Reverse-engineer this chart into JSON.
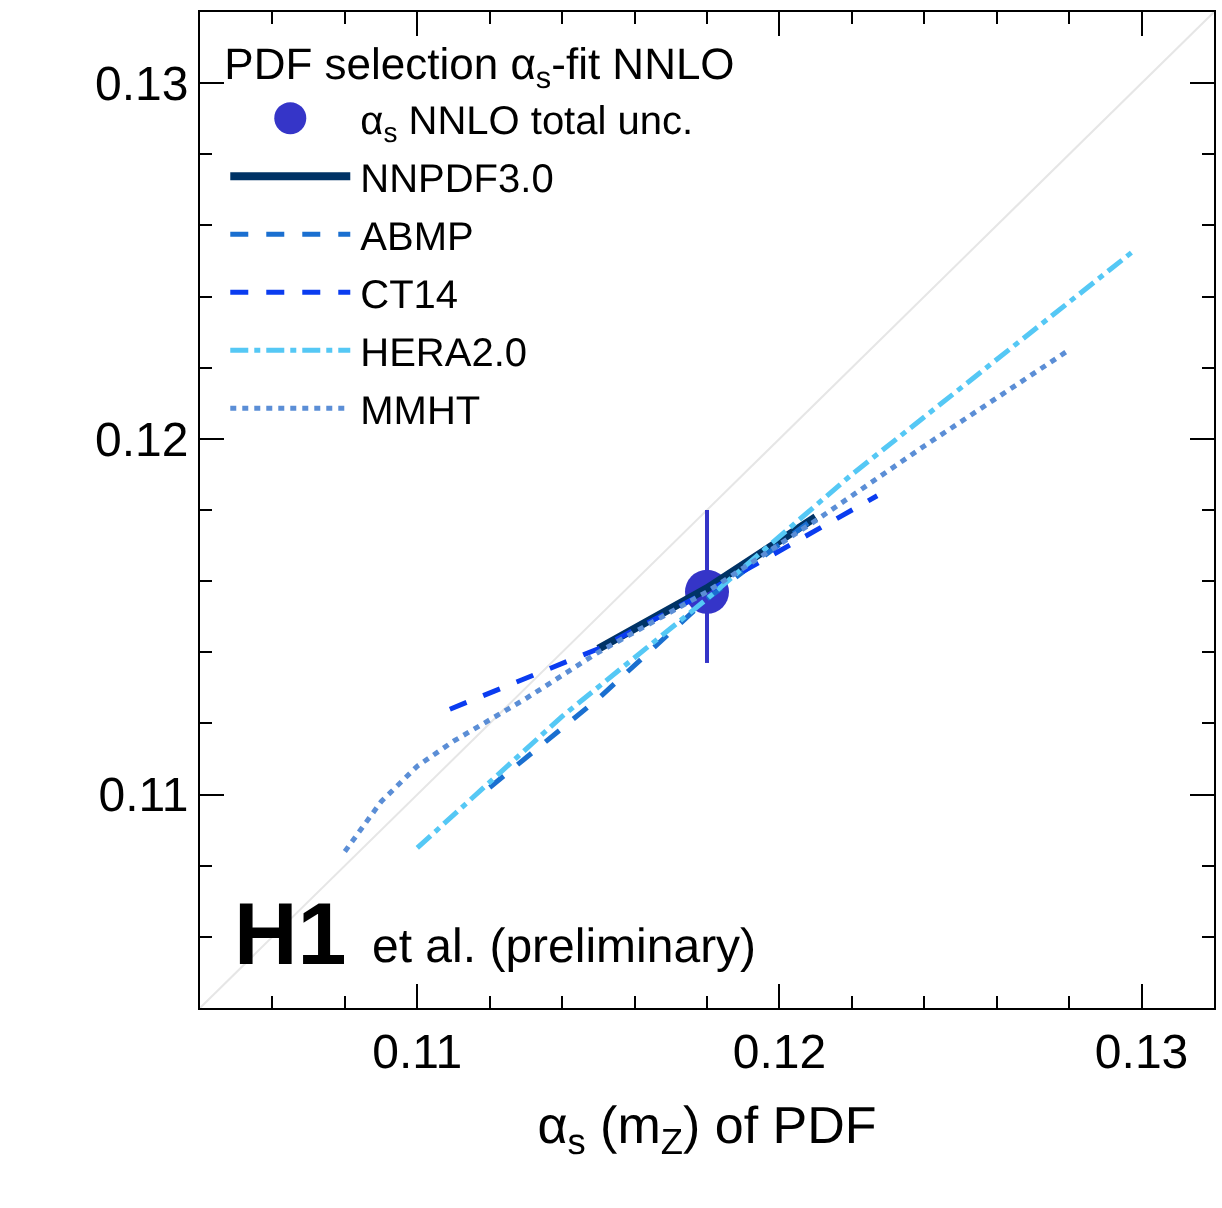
{
  "chart_data": {
    "type": "line",
    "legend_title": "PDF selection α$_{s}$-fit NNLO",
    "xlabel": "α$_{s}$ (m$_{Z}$) of PDF",
    "xlim": [
      0.104,
      0.132
    ],
    "ylim": [
      0.104,
      0.132
    ],
    "xticks": [
      0.11,
      0.12,
      0.13
    ],
    "yticks": [
      0.11,
      0.12,
      0.13
    ],
    "legend": "top left",
    "annotations": [
      "H1",
      "et al. (preliminary)"
    ],
    "series": [
      {
        "color": "#e6e6e6",
        "line_style": "solid",
        "x": [
          0.104,
          0.132
        ],
        "values": [
          0.104,
          0.132
        ]
      },
      {
        "type": "scatter",
        "name": "α$_{s}$ NNLO total unc.",
        "color": "#3535c8",
        "marker": "circle",
        "x": [
          0.118
        ],
        "values": [
          0.1157
        ],
        "errors": [
          [
            0.1137,
            0.118
          ]
        ]
      },
      {
        "name": "NNPDF3.0",
        "color": "#003366",
        "line_style": "solid",
        "x": [
          0.115,
          0.118,
          0.121
        ],
        "values": [
          0.1141,
          0.1158,
          0.1178
        ]
      },
      {
        "name": "ABMP",
        "color": "#1a6fd0",
        "line_style": "dashed",
        "x": [
          0.112,
          0.115,
          0.118,
          0.121
        ],
        "values": [
          0.1102,
          0.1127,
          0.1155,
          0.1178
        ]
      },
      {
        "name": "CT14",
        "color": "#0a3cf0",
        "line_style": "dashed",
        "x": [
          0.1109,
          0.115,
          0.118,
          0.1227
        ],
        "values": [
          0.1124,
          0.1141,
          0.1157,
          0.1184
        ]
      },
      {
        "name": "HERA2.0",
        "color": "#55c8f5",
        "line_style": "dashdot",
        "x": [
          0.11,
          0.114,
          0.118,
          0.122,
          0.1298
        ],
        "values": [
          0.1085,
          0.1122,
          0.1155,
          0.119,
          0.1253
        ]
      },
      {
        "name": "MMHT",
        "color": "#5b8ed6",
        "line_style": "dotted",
        "x": [
          0.108,
          0.109,
          0.11,
          0.111,
          0.113,
          0.115,
          0.118,
          0.121,
          0.124,
          0.128
        ],
        "values": [
          0.1084,
          0.1098,
          0.1108,
          0.1115,
          0.1127,
          0.114,
          0.1157,
          0.1177,
          0.1198,
          0.1225
        ]
      }
    ]
  }
}
